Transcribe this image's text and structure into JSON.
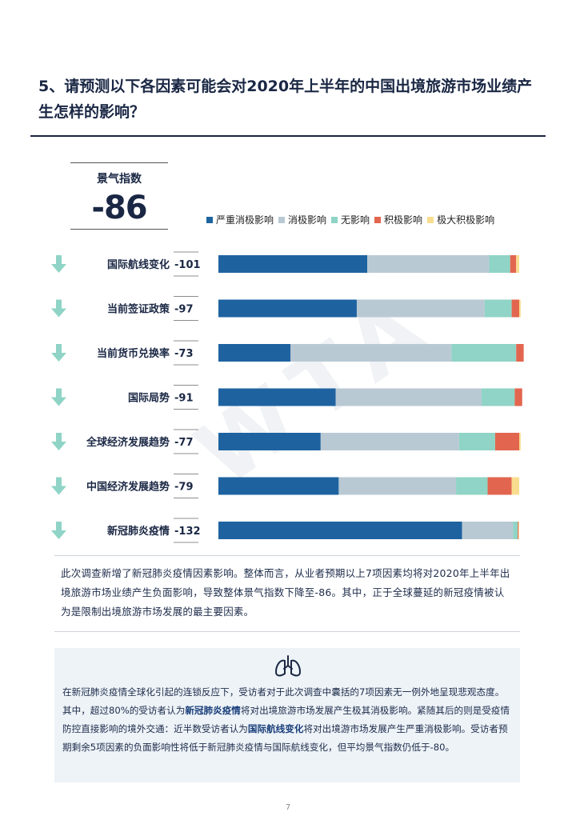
{
  "header": {
    "title": "5、请预测以下各因素可能会对2020年上半年的中国出境旅游市场业绩产生怎样的影响？"
  },
  "index": {
    "label": "景气指数",
    "value": "-86"
  },
  "chart_data": {
    "type": "bar",
    "stacked": true,
    "orientation": "horizontal",
    "xlim": [
      0,
      100
    ],
    "legend_position": "top-right",
    "categories": [
      "国际航线变化",
      "当前签证政策",
      "当前货币兑换率",
      "国际局势",
      "全球经济发展趋势",
      "中国经济发展趋势",
      "新冠肺炎疫情"
    ],
    "scores": [
      "-101",
      "-97",
      "-73",
      "-91",
      "-77",
      "-79",
      "-132"
    ],
    "series": [
      {
        "name": "严重消极影响",
        "color": "#1e63a0",
        "values": [
          49.5,
          46,
          24,
          39,
          34,
          40,
          81
        ]
      },
      {
        "name": "消极影响",
        "color": "#b9c9d4",
        "values": [
          40.5,
          42.5,
          53.5,
          48.5,
          46,
          39,
          17
        ]
      },
      {
        "name": "无影响",
        "color": "#8fd4c6",
        "values": [
          7,
          9,
          21.5,
          11,
          12,
          10.5,
          1.5
        ]
      },
      {
        "name": "积极影响",
        "color": "#e2664f",
        "values": [
          2,
          2.5,
          2.5,
          2.5,
          8,
          8,
          0.3
        ]
      },
      {
        "name": "极大积极影响",
        "color": "#f9dd8f",
        "values": [
          1,
          0.5,
          0,
          0,
          0.5,
          2.5,
          0.2
        ]
      }
    ]
  },
  "watermark": "WTA",
  "paragraph": "此次调查新增了新冠肺炎疫情因素影响。整体而言，从业者预期以上7项因素均将对2020年上半年出境旅游市场业绩产生负面影响，导致整体景气指数下降至-86。其中，正于全球蔓延的新冠疫情被认为是限制出境旅游市场发展的最主要因素。",
  "note": {
    "icon": "lungs-icon",
    "part1": "在新冠肺炎疫情全球化引起的连锁反应下，受访者对于此次调查中囊括的7项因素无一例外地呈现悲观态度。其中，超过80%的受访者认为",
    "bold1": "新冠肺炎疫情",
    "part2": "将对出境旅游市场发展产生极其消极影响。紧随其后的则是受疫情防控直接影响的境外交通：近半数受访者认为",
    "bold2": "国际航线变化",
    "part3": "将对出境游市场发展产生严重消极影响。受访者预期剩余5项因素的负面影响性将低于新冠肺炎疫情与国际航线变化，但平均景气指数仍低于-80。"
  },
  "page_number": "7"
}
